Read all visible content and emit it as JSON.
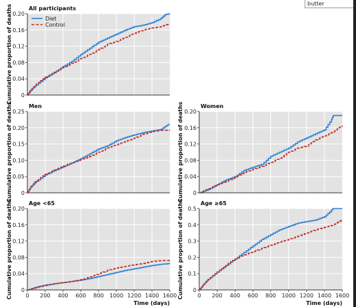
{
  "search": {
    "value": "butter"
  },
  "colors": {
    "diet": "#2f82d6",
    "control": "#c02a1e",
    "panel_bg": "#e3e3e3",
    "grid": "#ffffff"
  },
  "chart_data": [
    {
      "type": "line",
      "title": "All participants",
      "ylabel": "Cumulative proportion of deaths",
      "xlabel": "",
      "xlim": [
        0,
        1600
      ],
      "ylim": [
        0,
        0.2
      ],
      "yticks": [
        "0",
        "0.04",
        "0.08",
        "0.12",
        "0.16",
        "0.20"
      ],
      "xticks": [],
      "legend": {
        "placement": "top-left",
        "entries": [
          "Diet",
          "Control"
        ]
      },
      "series": [
        {
          "name": "Diet",
          "style": "solid",
          "x": [
            0,
            40,
            100,
            200,
            300,
            400,
            500,
            600,
            700,
            800,
            900,
            1000,
            1100,
            1200,
            1300,
            1400,
            1500,
            1550,
            1600
          ],
          "values": [
            0,
            0.012,
            0.025,
            0.042,
            0.055,
            0.07,
            0.083,
            0.1,
            0.115,
            0.13,
            0.14,
            0.15,
            0.16,
            0.168,
            0.172,
            0.178,
            0.188,
            0.198,
            0.2
          ]
        },
        {
          "name": "Control",
          "style": "dashed",
          "x": [
            0,
            40,
            100,
            200,
            300,
            400,
            500,
            600,
            700,
            800,
            900,
            1000,
            1100,
            1200,
            1300,
            1400,
            1500,
            1550,
            1600
          ],
          "values": [
            0,
            0.013,
            0.027,
            0.044,
            0.056,
            0.068,
            0.078,
            0.09,
            0.1,
            0.112,
            0.125,
            0.132,
            0.142,
            0.152,
            0.16,
            0.165,
            0.168,
            0.172,
            0.175
          ]
        }
      ]
    },
    {
      "type": "line",
      "title": "Men",
      "ylabel": "Cumulative proportion of deaths",
      "xlabel": "",
      "xlim": [
        0,
        1600
      ],
      "ylim": [
        0,
        0.25
      ],
      "yticks": [
        "0",
        "0.05",
        "0.10",
        "0.15",
        "0.20",
        "0.25"
      ],
      "xticks": [],
      "series": [
        {
          "name": "Diet",
          "style": "solid",
          "x": [
            0,
            40,
            100,
            200,
            300,
            400,
            500,
            600,
            700,
            800,
            900,
            1000,
            1100,
            1200,
            1300,
            1400,
            1500,
            1580,
            1600
          ],
          "values": [
            0,
            0.018,
            0.035,
            0.055,
            0.068,
            0.08,
            0.092,
            0.105,
            0.12,
            0.135,
            0.145,
            0.16,
            0.17,
            0.178,
            0.185,
            0.19,
            0.195,
            0.21,
            0.21
          ]
        },
        {
          "name": "Control",
          "style": "dashed",
          "x": [
            0,
            40,
            100,
            200,
            300,
            400,
            500,
            600,
            700,
            800,
            900,
            1000,
            1100,
            1200,
            1300,
            1400,
            1500,
            1600
          ],
          "values": [
            0,
            0.02,
            0.038,
            0.057,
            0.07,
            0.082,
            0.092,
            0.102,
            0.112,
            0.125,
            0.138,
            0.148,
            0.158,
            0.168,
            0.18,
            0.188,
            0.192,
            0.193
          ]
        }
      ]
    },
    {
      "type": "line",
      "title": "Women",
      "ylabel": "Cumulative proportion of deaths",
      "xlabel": "",
      "xlim": [
        0,
        1600
      ],
      "ylim": [
        0,
        0.2
      ],
      "yticks": [
        "0",
        "0.04",
        "0.08",
        "0.12",
        "0.16",
        "0.20"
      ],
      "xticks": [],
      "series": [
        {
          "name": "Diet",
          "style": "solid",
          "x": [
            0,
            100,
            200,
            300,
            400,
            500,
            600,
            700,
            800,
            900,
            1000,
            1100,
            1200,
            1300,
            1400,
            1480,
            1500,
            1600
          ],
          "values": [
            0,
            0.008,
            0.02,
            0.032,
            0.04,
            0.055,
            0.063,
            0.07,
            0.09,
            0.1,
            0.11,
            0.125,
            0.135,
            0.145,
            0.155,
            0.18,
            0.19,
            0.19
          ]
        },
        {
          "name": "Control",
          "style": "dashed",
          "x": [
            0,
            100,
            200,
            300,
            400,
            500,
            600,
            700,
            800,
            900,
            1000,
            1100,
            1200,
            1300,
            1400,
            1500,
            1560,
            1600
          ],
          "values": [
            0,
            0.01,
            0.02,
            0.028,
            0.038,
            0.05,
            0.058,
            0.065,
            0.075,
            0.085,
            0.1,
            0.11,
            0.115,
            0.13,
            0.14,
            0.15,
            0.16,
            0.165
          ]
        }
      ]
    },
    {
      "type": "line",
      "title": "Age <65",
      "ylabel": "Cumulative proportion of deaths",
      "xlabel": "",
      "xlim": [
        0,
        1600
      ],
      "ylim": [
        0,
        0.2
      ],
      "yticks": [
        "0",
        "0.04",
        "0.08",
        "0.12",
        "0.16",
        "0.20"
      ],
      "xticks": [
        "0",
        "200",
        "400",
        "600",
        "800",
        "1000",
        "1200",
        "1400",
        "1600"
      ],
      "series": [
        {
          "name": "Diet",
          "style": "solid",
          "x": [
            0,
            100,
            200,
            300,
            400,
            500,
            600,
            700,
            800,
            900,
            1000,
            1100,
            1200,
            1300,
            1400,
            1500,
            1600
          ],
          "values": [
            0,
            0.007,
            0.012,
            0.015,
            0.018,
            0.021,
            0.024,
            0.028,
            0.033,
            0.038,
            0.043,
            0.048,
            0.052,
            0.056,
            0.06,
            0.063,
            0.065
          ]
        },
        {
          "name": "Control",
          "style": "dashed",
          "x": [
            0,
            100,
            200,
            300,
            400,
            500,
            600,
            700,
            800,
            900,
            1000,
            1100,
            1200,
            1300,
            1400,
            1500,
            1600
          ],
          "values": [
            0,
            0.006,
            0.011,
            0.015,
            0.018,
            0.021,
            0.025,
            0.032,
            0.04,
            0.048,
            0.054,
            0.058,
            0.062,
            0.065,
            0.07,
            0.072,
            0.072
          ]
        }
      ]
    },
    {
      "type": "line",
      "title": "Age ≥65",
      "ylabel": "Cumulative proportion of deaths",
      "xlabel": "Time (days)",
      "xlim": [
        0,
        1600
      ],
      "ylim": [
        0,
        0.5
      ],
      "yticks": [
        "0",
        "0.1",
        "0.2",
        "0.3",
        "0.4",
        "0.5"
      ],
      "xticks": [
        "0",
        "200",
        "400",
        "600",
        "800",
        "1000",
        "1200",
        "1400",
        "1600"
      ],
      "series": [
        {
          "name": "Diet",
          "style": "solid",
          "x": [
            0,
            50,
            100,
            200,
            300,
            400,
            500,
            600,
            700,
            800,
            900,
            1000,
            1100,
            1200,
            1300,
            1400,
            1480,
            1500,
            1600
          ],
          "values": [
            0,
            0.035,
            0.065,
            0.11,
            0.15,
            0.19,
            0.23,
            0.27,
            0.31,
            0.34,
            0.37,
            0.39,
            0.41,
            0.42,
            0.43,
            0.45,
            0.49,
            0.5,
            0.5
          ]
        },
        {
          "name": "Control",
          "style": "dashed",
          "x": [
            0,
            50,
            100,
            200,
            300,
            400,
            500,
            600,
            700,
            800,
            900,
            1000,
            1100,
            1200,
            1300,
            1400,
            1500,
            1560,
            1600
          ],
          "values": [
            0,
            0.035,
            0.065,
            0.11,
            0.155,
            0.19,
            0.215,
            0.235,
            0.255,
            0.275,
            0.295,
            0.31,
            0.33,
            0.35,
            0.37,
            0.385,
            0.4,
            0.42,
            0.43
          ]
        }
      ]
    }
  ],
  "shared": {
    "time_label": "Time (days)"
  }
}
